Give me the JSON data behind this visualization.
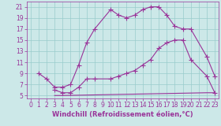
{
  "xlabel": "Windchill (Refroidissement éolien,°C)",
  "background_color": "#cce8e8",
  "grid_color": "#99cccc",
  "line_color": "#993399",
  "xlim": [
    -0.5,
    23.5
  ],
  "ylim": [
    4.5,
    22
  ],
  "xticks": [
    0,
    1,
    2,
    3,
    4,
    5,
    6,
    7,
    8,
    9,
    10,
    11,
    12,
    13,
    14,
    15,
    16,
    17,
    18,
    19,
    20,
    21,
    22,
    23
  ],
  "yticks": [
    5,
    7,
    9,
    11,
    13,
    15,
    17,
    19,
    21
  ],
  "line1_x": [
    1,
    2,
    3,
    4,
    5,
    6,
    7,
    8,
    10,
    11,
    12,
    13,
    14,
    15,
    16,
    17,
    18,
    19,
    20,
    22,
    23
  ],
  "line1_y": [
    9,
    8,
    6.5,
    6.5,
    7,
    10.5,
    14.5,
    17,
    20.5,
    19.5,
    19,
    19.5,
    20.5,
    21,
    21,
    19.5,
    17.5,
    17,
    17,
    12,
    8.5
  ],
  "line2_x": [
    3,
    4,
    5,
    6,
    7,
    8,
    10,
    11,
    12,
    13,
    14,
    15,
    16,
    17,
    18,
    19,
    20,
    22,
    23
  ],
  "line2_y": [
    6,
    5.5,
    5.5,
    6.5,
    8,
    8,
    8,
    8.5,
    9,
    9.5,
    10.5,
    11.5,
    13.5,
    14.5,
    15,
    15,
    11.5,
    8.5,
    5.5
  ],
  "line3_x": [
    3,
    4,
    22,
    23
  ],
  "line3_y": [
    5,
    5,
    5.5,
    5.5
  ],
  "tick_fontsize": 5.5,
  "label_fontsize": 6,
  "marker_size": 2.5
}
